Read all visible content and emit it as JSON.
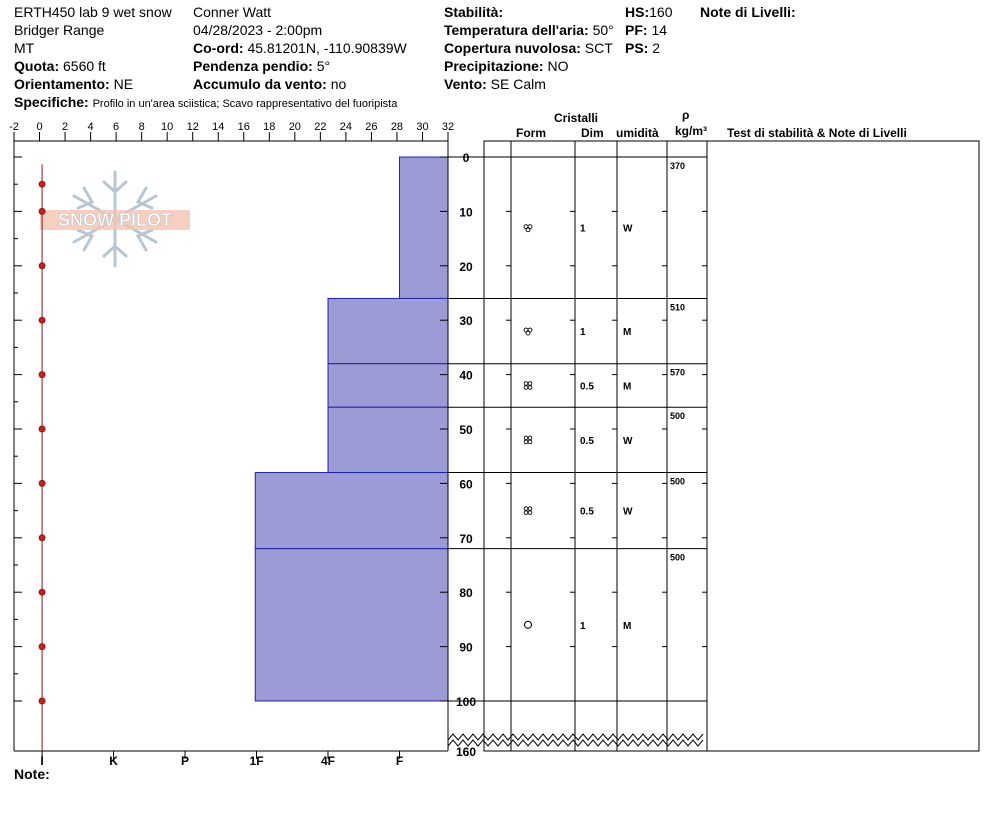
{
  "header": {
    "col1": {
      "title": "ERTH450 lab 9 wet snow",
      "range": "Bridger Range",
      "state": "MT",
      "quota_label": "Quota:",
      "quota_value": "6560 ft",
      "orient_label": "Orientamento:",
      "orient_value": "NE",
      "spec_label": "Specifiche:",
      "spec_value": "Profilo in un'area sciistica; Scavo rappresentativo del fuoripista"
    },
    "col2": {
      "observer": "Conner Watt",
      "datetime": "04/28/2023 - 2:00pm",
      "coord_label": "Co-ord:",
      "coord_value": "45.81201N, -110.90839W",
      "slope_label": "Pendenza pendio:",
      "slope_value": "5°",
      "wind_acc_label": "Accumulo da vento:",
      "wind_acc_value": "no"
    },
    "col3": {
      "stability_label": "Stabilità:",
      "air_temp_label": "Temperatura dell'aria:",
      "air_temp_value": "50°",
      "cloud_label": "Copertura nuvolosa:",
      "cloud_value": "SCT",
      "precip_label": "Precipitazione:",
      "precip_value": "NO",
      "wind_label": "Vento:",
      "wind_value": "SE Calm"
    },
    "col4": {
      "hs_label": "HS:",
      "hs_value": "160",
      "pf_label": "PF:",
      "pf_value": "14",
      "ps_label": "PS:",
      "ps_value": "2"
    },
    "notes_layers_label": "Note di Livelli:"
  },
  "table_headers": {
    "crystals": "Cristalli",
    "form": "Form",
    "dim": "Dim",
    "humidity": "umidità",
    "rho": "ρ",
    "density_unit": "kg/m³",
    "stability_notes": "Test di stabilità & Note di Livelli"
  },
  "footer": {
    "note_label": "Note:"
  },
  "watermark": "SNOW PILOT",
  "chart_data": {
    "type": "snow_profile",
    "temperature_axis": {
      "ticks": [
        "-2",
        "0",
        "2",
        "4",
        "6",
        "8",
        "10",
        "12",
        "14",
        "16",
        "18",
        "20",
        "22",
        "24",
        "26",
        "28",
        "30",
        "32"
      ],
      "range": [
        -2,
        32
      ]
    },
    "hardness_axis": {
      "labels": [
        "I",
        "K",
        "P",
        "1F",
        "4F",
        "F"
      ],
      "positions_in_temp_units": [
        0.2,
        5.8,
        11.4,
        17,
        22.6,
        28.2
      ]
    },
    "depth_axis": {
      "ticks": [
        "0",
        "10",
        "20",
        "30",
        "40",
        "50",
        "60",
        "70",
        "80",
        "90",
        "100"
      ],
      "range": [
        0,
        100
      ],
      "total_label": "160"
    },
    "temperature_profile": [
      {
        "depth": 5,
        "temp": 0.2
      },
      {
        "depth": 10,
        "temp": 0.2
      },
      {
        "depth": 20,
        "temp": 0.2
      },
      {
        "depth": 30,
        "temp": 0.2
      },
      {
        "depth": 40,
        "temp": 0.2
      },
      {
        "depth": 50,
        "temp": 0.2
      },
      {
        "depth": 60,
        "temp": 0.2
      },
      {
        "depth": 70,
        "temp": 0.2
      },
      {
        "depth": 80,
        "temp": 0.2
      },
      {
        "depth": 90,
        "temp": 0.2
      },
      {
        "depth": 100,
        "temp": 0.2
      }
    ],
    "layers": [
      {
        "top": 0,
        "bottom": 26,
        "hardness_at": 28.2,
        "form": "rounded",
        "dim": "1",
        "humidity": "W",
        "density": "370"
      },
      {
        "top": 26,
        "bottom": 38,
        "hardness_at": 22.6,
        "form": "rounded",
        "dim": "1",
        "humidity": "M",
        "density": "510"
      },
      {
        "top": 38,
        "bottom": 46,
        "hardness_at": 22.6,
        "form": "clustered",
        "dim": "0.5",
        "humidity": "M",
        "density": "570"
      },
      {
        "top": 46,
        "bottom": 58,
        "hardness_at": 22.6,
        "form": "clustered",
        "dim": "0.5",
        "humidity": "W",
        "density": "500"
      },
      {
        "top": 58,
        "bottom": 72,
        "hardness_at": 16.9,
        "form": "clustered",
        "dim": "0.5",
        "humidity": "W",
        "density": "500"
      },
      {
        "top": 72,
        "bottom": 100,
        "hardness_at": 16.9,
        "form": "melt",
        "dim": "1",
        "humidity": "M",
        "density": "500"
      }
    ]
  },
  "colors": {
    "layer_fill": "#9b9bd6",
    "layer_stroke": "#2222aa",
    "temp_line": "#8b1a1a",
    "temp_dot": "#cc1f1f"
  }
}
